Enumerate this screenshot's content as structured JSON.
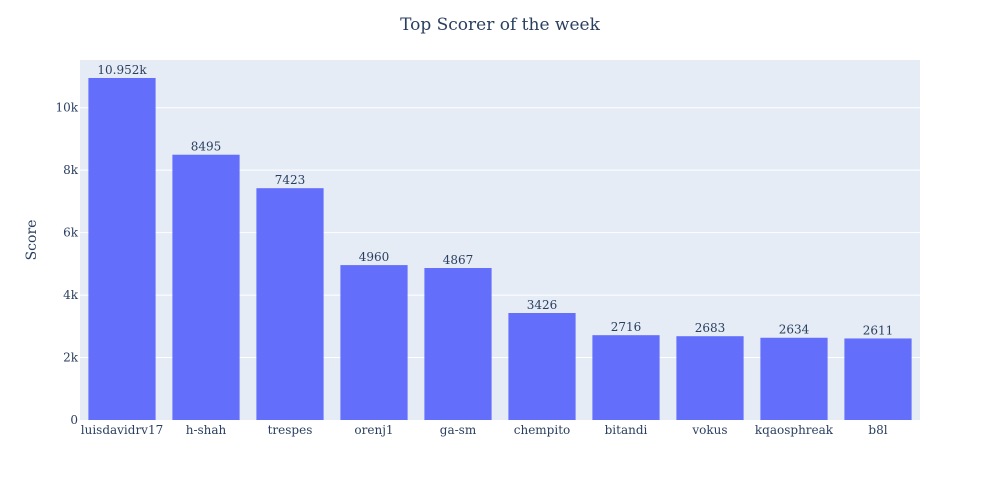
{
  "chart_data": {
    "type": "bar",
    "title": "Top Scorer of the week",
    "xlabel": "",
    "ylabel": "Score",
    "categories": [
      "luisdavidrv17",
      "h-shah",
      "trespes",
      "orenj1",
      "ga-sm",
      "chempito",
      "bitandi",
      "vokus",
      "kqaosphreak",
      "b8l"
    ],
    "values": [
      10952,
      8495,
      7423,
      4960,
      4867,
      3426,
      2716,
      2683,
      2634,
      2611
    ],
    "data_labels": [
      "10.952k",
      "8495",
      "7423",
      "4960",
      "4867",
      "3426",
      "2716",
      "2683",
      "2634",
      "2611"
    ],
    "ylim": [
      0,
      11528
    ],
    "yticks": [
      0,
      2000,
      4000,
      6000,
      8000,
      10000
    ],
    "ytick_labels": [
      "0",
      "2k",
      "4k",
      "6k",
      "8k",
      "10k"
    ],
    "grid": true,
    "legend": "none",
    "colors": {
      "bar": "#636efa",
      "plot_bg": "#e5ecf6",
      "grid": "#ffffff",
      "text": "#2a3f5f"
    }
  }
}
